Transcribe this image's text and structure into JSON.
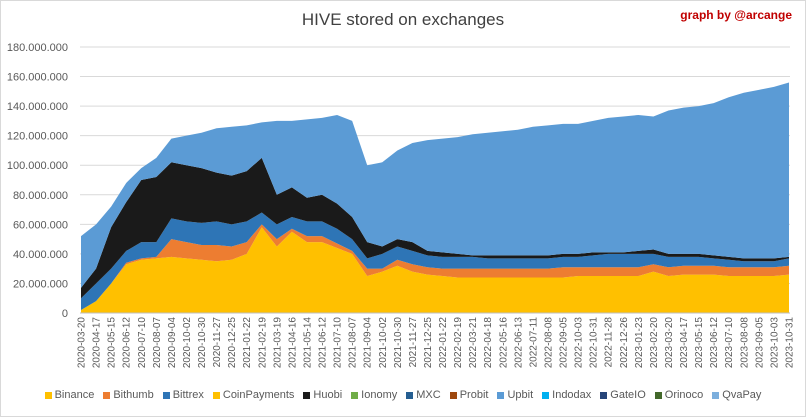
{
  "chart_data": {
    "type": "area",
    "stacked": true,
    "title": "HIVE stored on exchanges",
    "credit": "graph by @arcange",
    "ylim": [
      0,
      180000000
    ],
    "y_ticks": [
      "0",
      "20.000.000",
      "40.000.000",
      "60.000.000",
      "80.000.000",
      "100.000.000",
      "120.000.000",
      "140.000.000",
      "160.000.000",
      "180.000.000"
    ],
    "grid": true,
    "legend_position": "bottom",
    "x": [
      "2020-03-20",
      "2020-04-17",
      "2020-05-15",
      "2020-06-12",
      "2020-07-10",
      "2020-08-07",
      "2020-09-04",
      "2020-10-02",
      "2020-10-30",
      "2020-11-27",
      "2020-12-25",
      "2021-01-22",
      "2021-02-19",
      "2021-03-19",
      "2021-04-16",
      "2021-05-14",
      "2021-06-12",
      "2021-07-10",
      "2021-08-07",
      "2021-09-04",
      "2021-10-02",
      "2021-10-30",
      "2021-11-27",
      "2021-12-25",
      "2022-01-22",
      "2022-02-19",
      "2022-03-21",
      "2022-04-18",
      "2022-05-16",
      "2022-06-13",
      "2022-07-11",
      "2022-08-08",
      "2022-09-05",
      "2022-10-03",
      "2022-10-31",
      "2022-11-28",
      "2022-12-26",
      "2023-01-23",
      "2023-02-20",
      "2023-03-20",
      "2023-04-17",
      "2023-05-15",
      "2023-06-12",
      "2023-07-10",
      "2023-08-08",
      "2023-09-05",
      "2023-10-03",
      "2023-10-31"
    ],
    "value_unit_multiplier": 1000000,
    "series": [
      {
        "name": "Binance",
        "color": "#FFC000",
        "values": [
          2,
          8,
          20,
          33,
          36,
          37,
          38,
          37,
          36,
          35,
          36,
          40,
          58,
          45,
          55,
          48,
          48,
          44,
          40,
          25,
          28,
          32,
          28,
          26,
          25,
          24,
          24,
          24,
          24,
          24,
          24,
          24,
          24,
          25,
          25,
          25,
          25,
          25,
          28,
          25,
          26,
          26,
          26,
          25,
          25,
          25,
          25,
          26
        ]
      },
      {
        "name": "Bithumb",
        "color": "#ED7D31",
        "values": [
          0,
          0,
          0,
          1,
          1,
          1,
          12,
          11,
          10,
          11,
          9,
          8,
          2,
          5,
          2,
          4,
          4,
          3,
          2,
          5,
          2,
          4,
          5,
          5,
          5,
          6,
          6,
          6,
          6,
          6,
          6,
          6,
          7,
          6,
          6,
          6,
          6,
          6,
          5,
          6,
          6,
          6,
          6,
          6,
          6,
          6,
          6,
          6
        ]
      },
      {
        "name": "Bittrex",
        "color": "#2E75B6",
        "values": [
          8,
          12,
          10,
          8,
          11,
          10,
          14,
          14,
          15,
          16,
          15,
          14,
          8,
          10,
          8,
          10,
          10,
          10,
          8,
          7,
          10,
          9,
          9,
          8,
          8,
          8,
          8,
          7,
          7,
          7,
          7,
          7,
          7,
          7,
          8,
          9,
          9,
          9,
          7,
          7,
          6,
          6,
          5,
          5,
          4,
          4,
          4,
          5
        ]
      },
      {
        "name": "CoinPayments",
        "color": "#FFC000"
      },
      {
        "name": "Huobi",
        "color": "#1A1A1A",
        "values": [
          7,
          10,
          28,
          33,
          42,
          44,
          38,
          38,
          37,
          33,
          33,
          34,
          37,
          20,
          20,
          16,
          18,
          17,
          15,
          11,
          5,
          5,
          6,
          3,
          3,
          2,
          1,
          2,
          2,
          2,
          2,
          2,
          2,
          2,
          2,
          1,
          1,
          2,
          3,
          2,
          2,
          2,
          2,
          2,
          2,
          2,
          2,
          1
        ]
      },
      {
        "name": "Ionomy",
        "color": "#70AD47"
      },
      {
        "name": "MXC",
        "color": "#255E91"
      },
      {
        "name": "Probit",
        "color": "#9E480E"
      },
      {
        "name": "Upbit",
        "color": "#5B9BD5",
        "values": [
          35,
          30,
          14,
          13,
          8,
          13,
          16,
          20,
          24,
          30,
          33,
          31,
          24,
          50,
          45,
          53,
          52,
          60,
          65,
          52,
          57,
          60,
          67,
          75,
          77,
          79,
          82,
          83,
          84,
          85,
          87,
          88,
          88,
          88,
          89,
          91,
          92,
          92,
          90,
          97,
          99,
          100,
          103,
          108,
          112,
          114,
          116,
          118
        ]
      },
      {
        "name": "Indodax",
        "color": "#00B0F0"
      },
      {
        "name": "GateIO",
        "color": "#264478"
      },
      {
        "name": "Orinoco",
        "color": "#43682B"
      },
      {
        "name": "QvaPay",
        "color": "#7CAFDD"
      }
    ]
  }
}
